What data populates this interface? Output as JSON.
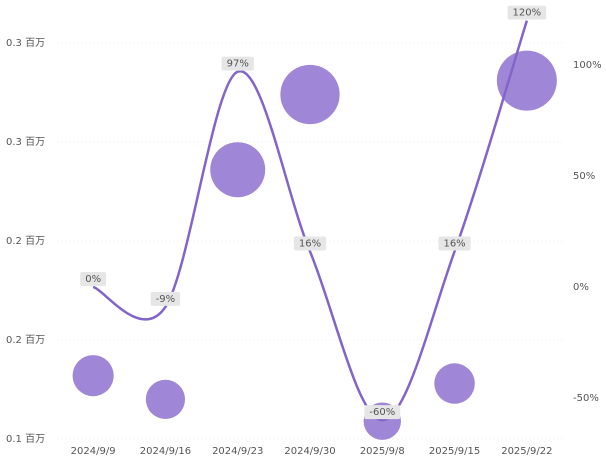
{
  "chart_data": {
    "type": "combo",
    "categories": [
      "2024/9/9",
      "2024/9/16",
      "2024/9/23",
      "2024/9/30",
      "2025/9/8",
      "2025/9/15",
      "2025/9/22"
    ],
    "series": [
      {
        "type": "bubble",
        "axis": "y",
        "color": "#9b7fd4",
        "values": [
          0.132,
          0.12,
          0.236,
          0.274,
          0.109,
          0.128,
          0.281
        ]
      },
      {
        "type": "line",
        "axis": "y2",
        "color": "#8364c9",
        "values": [
          0,
          -9,
          97,
          16,
          -60,
          16,
          120
        ],
        "value_labels": [
          "0%",
          "-9%",
          "97%",
          "16%",
          "-60%",
          "16%",
          "120%"
        ]
      }
    ],
    "ylim": [
      0.1,
      0.3113
    ],
    "yticks": [
      {
        "value": 0.1,
        "label": "0.1 百万"
      },
      {
        "value": 0.15,
        "label": "0.2 百万"
      },
      {
        "value": 0.2,
        "label": "0.2 百万"
      },
      {
        "value": 0.25,
        "label": "0.3 百万"
      },
      {
        "value": 0.3,
        "label": "0.3 百万"
      }
    ],
    "y2lim": [
      -68.5,
      120
    ],
    "y2ticks": [
      {
        "value": -50,
        "label": "-50%"
      },
      {
        "value": 0,
        "label": "0%"
      },
      {
        "value": 50,
        "label": "50%"
      },
      {
        "value": 100,
        "label": "100%"
      }
    ],
    "grid": true
  }
}
